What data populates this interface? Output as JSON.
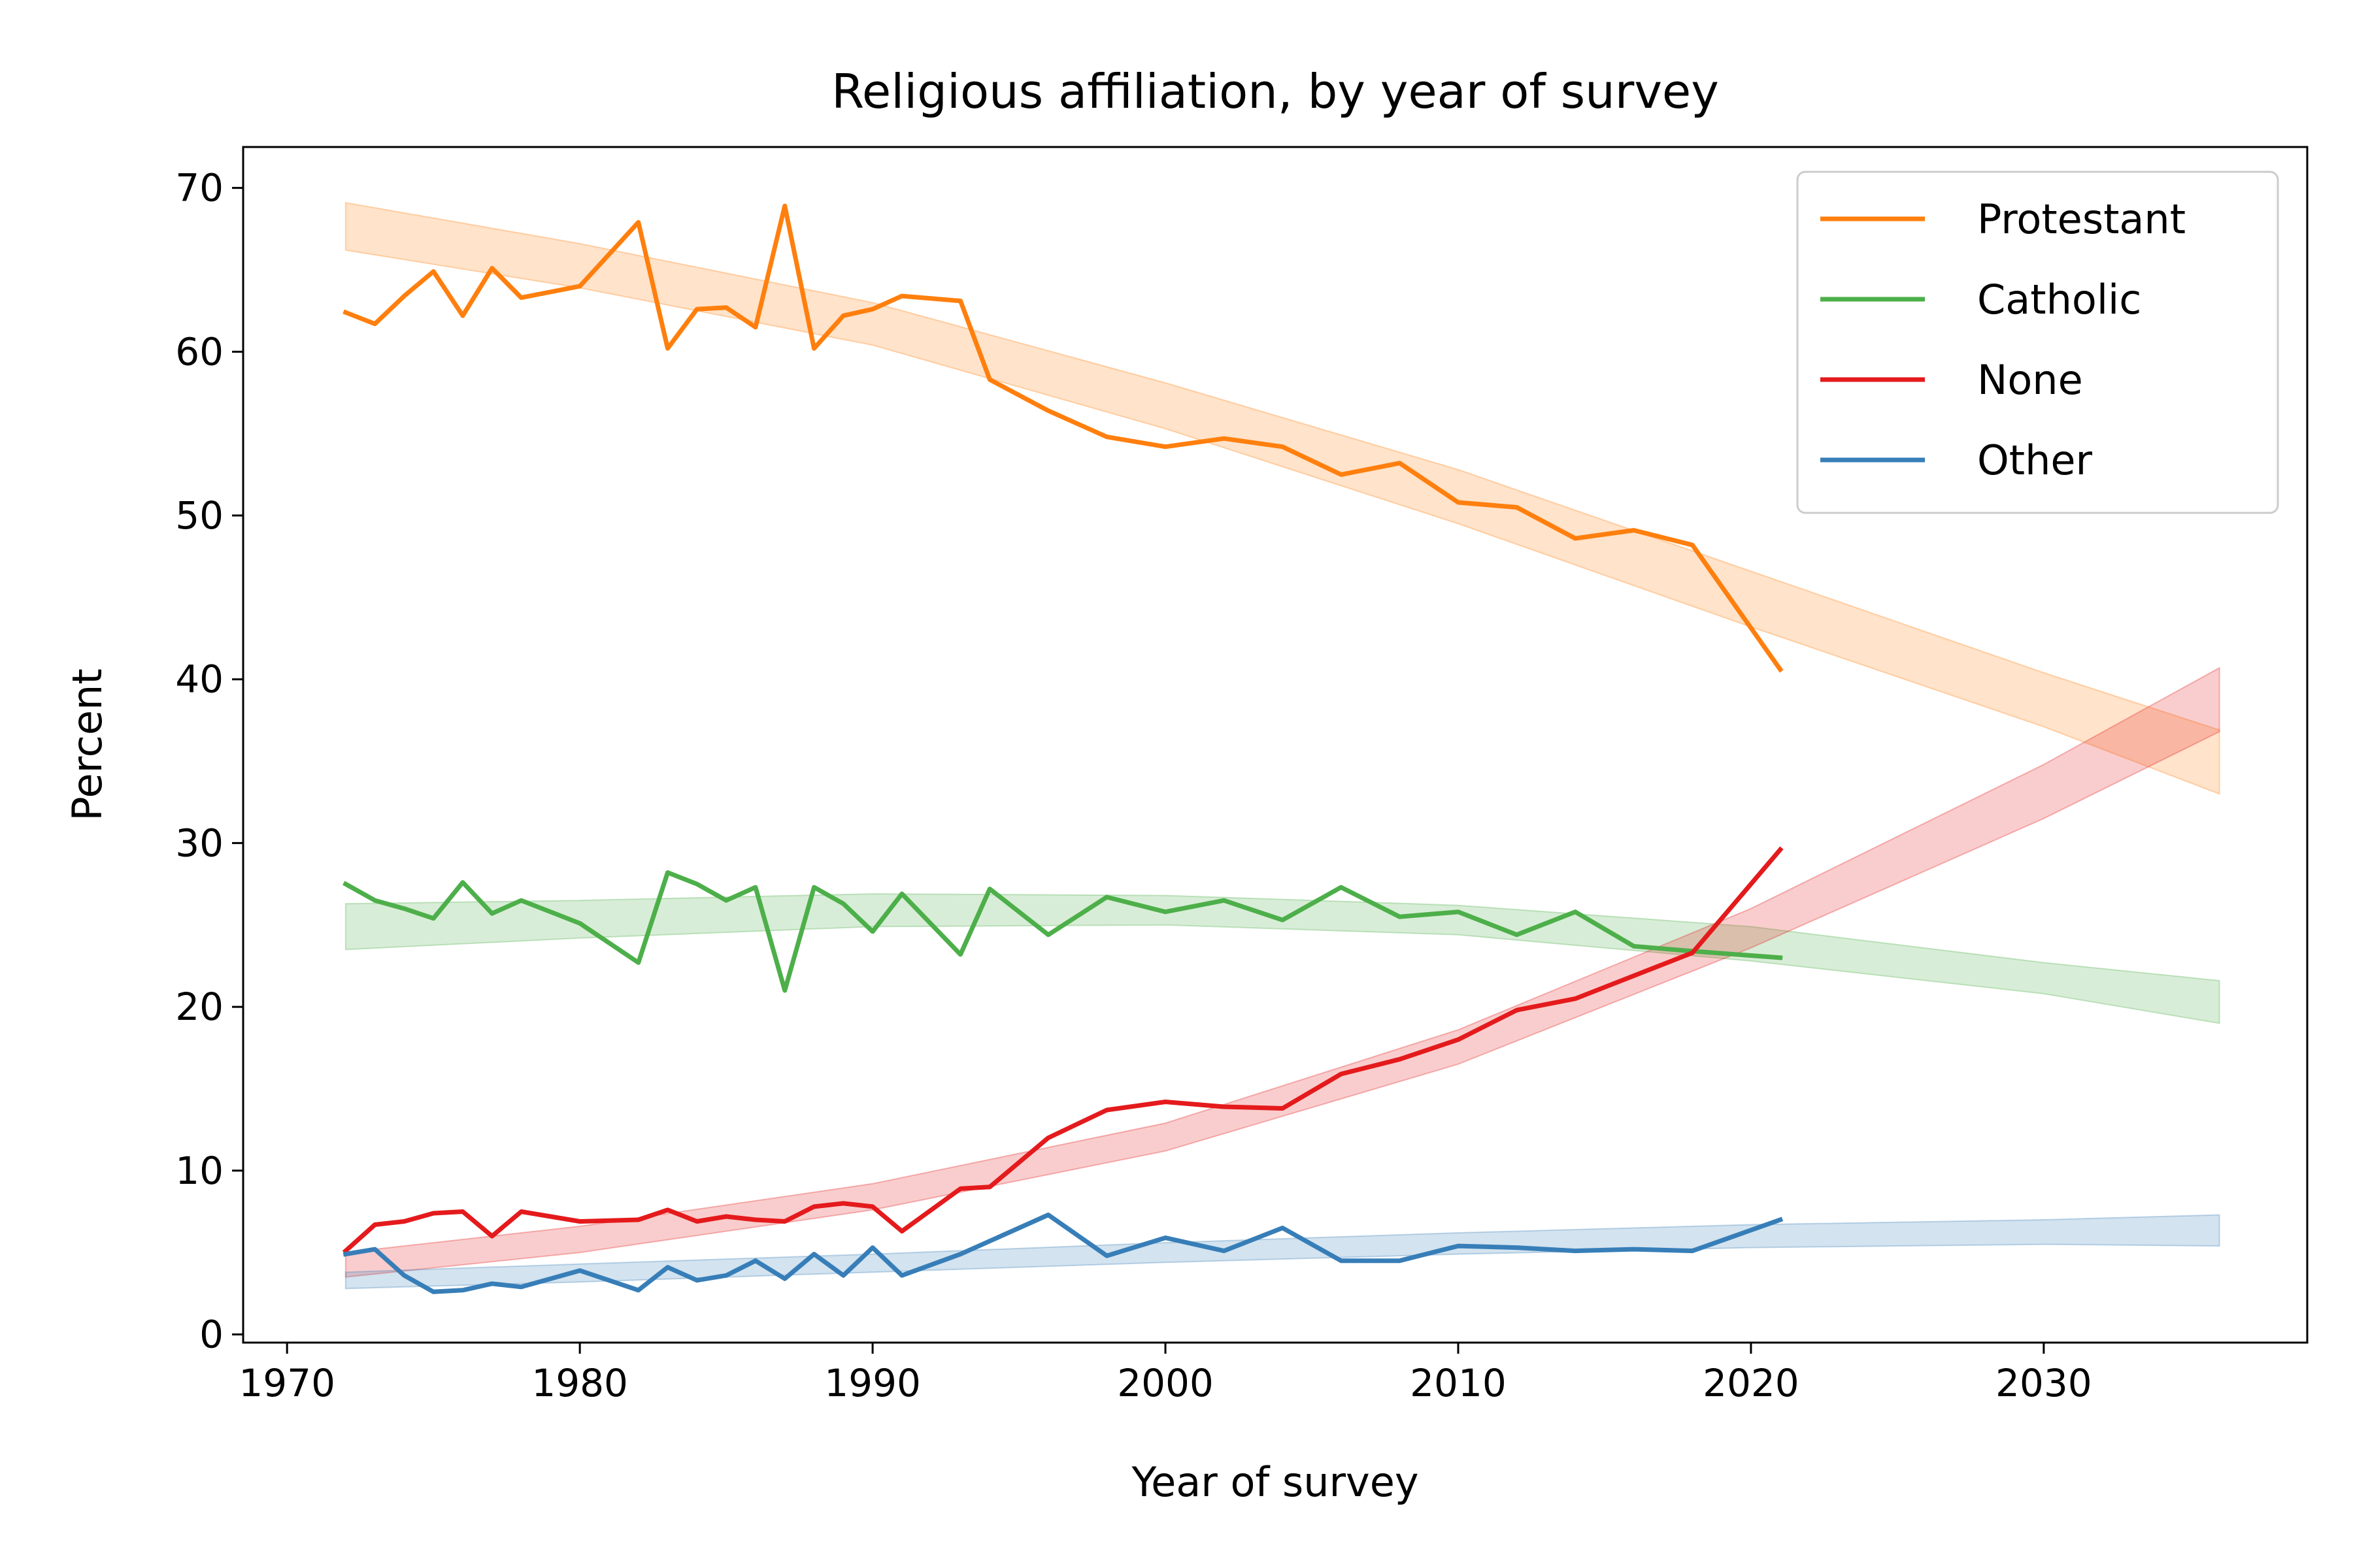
{
  "chart_data": {
    "type": "line",
    "title": "Religious affiliation, by year of survey",
    "xlabel": "Year of survey",
    "ylabel": "Percent",
    "xlim": [
      1968.5,
      2039
    ],
    "ylim": [
      -0.5,
      72.5
    ],
    "xticks": [
      1970,
      1980,
      1990,
      2000,
      2010,
      2020,
      2030
    ],
    "yticks": [
      0,
      10,
      20,
      30,
      40,
      50,
      60,
      70
    ],
    "legend_position": "top-right",
    "series": [
      {
        "name": "Protestant",
        "color": "#ff7f0e",
        "x": [
          1972,
          1973,
          1974,
          1975,
          1976,
          1977,
          1978,
          1980,
          1982,
          1983,
          1984,
          1985,
          1986,
          1987,
          1988,
          1989,
          1990,
          1991,
          1993,
          1994,
          1996,
          1998,
          2000,
          2002,
          2004,
          2006,
          2008,
          2010,
          2012,
          2014,
          2016,
          2018,
          2021
        ],
        "y": [
          62.4,
          61.7,
          63.4,
          64.9,
          62.2,
          65.1,
          63.3,
          64.0,
          67.9,
          60.2,
          62.6,
          62.7,
          61.5,
          68.9,
          60.2,
          62.2,
          62.6,
          63.4,
          63.1,
          58.3,
          56.4,
          54.8,
          54.2,
          54.7,
          54.2,
          52.5,
          53.2,
          50.8,
          50.5,
          48.6,
          49.1,
          48.2,
          40.6
        ],
        "band": {
          "x": [
            1972,
            1980,
            1990,
            2000,
            2010,
            2020,
            2030,
            2036
          ],
          "lower": [
            66.2,
            63.9,
            60.4,
            55.3,
            49.5,
            43.2,
            37.1,
            33.0
          ],
          "upper": [
            69.1,
            66.6,
            63.0,
            58.1,
            52.8,
            46.6,
            40.4,
            36.9
          ]
        }
      },
      {
        "name": "Catholic",
        "color": "#4daf4a",
        "x": [
          1972,
          1973,
          1974,
          1975,
          1976,
          1977,
          1978,
          1980,
          1982,
          1983,
          1984,
          1985,
          1986,
          1987,
          1988,
          1989,
          1990,
          1991,
          1993,
          1994,
          1996,
          1998,
          2000,
          2002,
          2004,
          2006,
          2008,
          2010,
          2012,
          2014,
          2016,
          2018,
          2021
        ],
        "y": [
          27.5,
          26.5,
          26.0,
          25.4,
          27.6,
          25.7,
          26.5,
          25.1,
          22.7,
          28.2,
          27.5,
          26.5,
          27.3,
          21.0,
          27.3,
          26.3,
          24.6,
          26.9,
          23.2,
          27.2,
          24.4,
          26.7,
          25.8,
          26.5,
          25.3,
          27.3,
          25.5,
          25.8,
          24.4,
          25.8,
          23.7,
          23.4,
          23.0
        ],
        "band": {
          "x": [
            1972,
            1980,
            1990,
            2000,
            2010,
            2020,
            2030,
            2036
          ],
          "lower": [
            23.5,
            24.2,
            24.9,
            25.0,
            24.4,
            22.8,
            20.8,
            19.0
          ],
          "upper": [
            26.3,
            26.5,
            26.9,
            26.8,
            26.2,
            24.9,
            22.7,
            21.6
          ]
        }
      },
      {
        "name": "None",
        "color": "#e41a1c",
        "x": [
          1972,
          1973,
          1974,
          1975,
          1976,
          1977,
          1978,
          1980,
          1982,
          1983,
          1984,
          1985,
          1986,
          1987,
          1988,
          1989,
          1990,
          1991,
          1993,
          1994,
          1996,
          1998,
          2000,
          2002,
          2004,
          2006,
          2008,
          2010,
          2012,
          2014,
          2016,
          2018,
          2021
        ],
        "y": [
          5.1,
          6.7,
          6.9,
          7.4,
          7.5,
          6.0,
          7.5,
          6.9,
          7.0,
          7.6,
          6.9,
          7.2,
          7.0,
          6.9,
          7.8,
          8.0,
          7.8,
          6.3,
          8.9,
          9.0,
          12.0,
          13.7,
          14.2,
          13.9,
          13.8,
          15.9,
          16.8,
          18.0,
          19.8,
          20.5,
          21.9,
          23.3,
          29.6
        ],
        "band": {
          "x": [
            1972,
            1980,
            1990,
            2000,
            2010,
            2020,
            2030,
            2036
          ],
          "lower": [
            3.5,
            5.0,
            7.6,
            11.2,
            16.5,
            23.6,
            31.5,
            36.8
          ],
          "upper": [
            5.0,
            6.6,
            9.2,
            12.9,
            18.6,
            26.0,
            34.8,
            40.7
          ]
        }
      },
      {
        "name": "Other",
        "color": "#377eb8",
        "x": [
          1972,
          1973,
          1974,
          1975,
          1976,
          1977,
          1978,
          1980,
          1982,
          1983,
          1984,
          1985,
          1986,
          1987,
          1988,
          1989,
          1990,
          1991,
          1993,
          1994,
          1996,
          1998,
          2000,
          2002,
          2004,
          2006,
          2008,
          2010,
          2012,
          2014,
          2016,
          2018,
          2021
        ],
        "y": [
          4.9,
          5.2,
          3.6,
          2.6,
          2.7,
          3.1,
          2.9,
          3.9,
          2.7,
          4.1,
          3.3,
          3.6,
          4.5,
          3.4,
          4.9,
          3.6,
          5.3,
          3.6,
          4.9,
          5.7,
          7.3,
          4.8,
          5.9,
          5.1,
          6.5,
          4.5,
          4.5,
          5.4,
          5.3,
          5.1,
          5.2,
          5.1,
          7.0
        ],
        "band": {
          "x": [
            1972,
            1980,
            1990,
            2000,
            2010,
            2020,
            2030,
            2036
          ],
          "lower": [
            2.8,
            3.2,
            3.8,
            4.4,
            4.9,
            5.3,
            5.5,
            5.4
          ],
          "upper": [
            3.8,
            4.3,
            4.9,
            5.6,
            6.2,
            6.7,
            7.0,
            7.3
          ]
        }
      }
    ]
  }
}
